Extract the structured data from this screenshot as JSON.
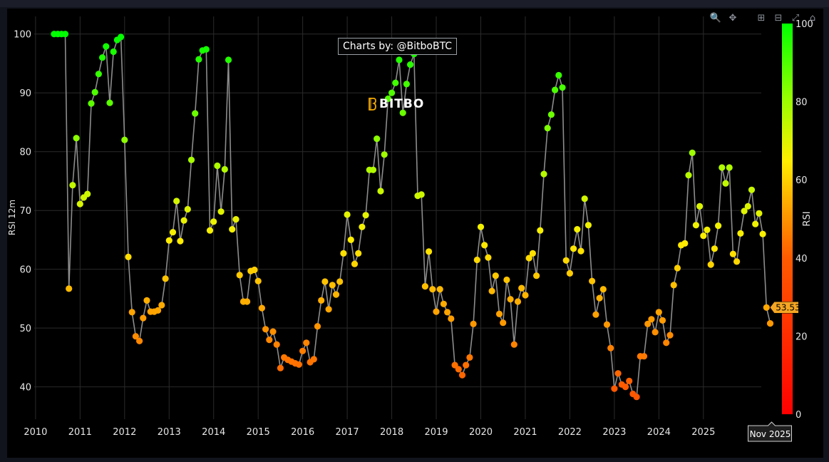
{
  "toolbar": {
    "zoom_icon": "magnifier-icon",
    "pan_icon": "pan-icon",
    "zoom_in_icon": "plus-icon",
    "zoom_out_icon": "minus-icon",
    "autoscale_icon": "autoscale-icon",
    "reset_icon": "home-icon"
  },
  "watermark": "Charts by: @BitboBTC",
  "logo_text": "BITBO",
  "hover": {
    "value_label": "53.53",
    "date_label": "Nov 2025"
  },
  "colors": {
    "line": "#888888",
    "grid": "#2a2a2a",
    "axis_text": "#e6e6e6",
    "tooltip_bg": "#f5a623"
  },
  "chart_data": {
    "type": "scatter",
    "title": "",
    "xlabel": "",
    "ylabel": "RSI 12m",
    "xlim": [
      2009.97,
      2026.3
    ],
    "ylim": [
      34.5,
      103
    ],
    "x_ticks": [
      "2010",
      "2011",
      "2012",
      "2013",
      "2014",
      "2015",
      "2016",
      "2017",
      "2018",
      "2019",
      "2020",
      "2021",
      "2022",
      "2023",
      "2024",
      "2025"
    ],
    "y_ticks": [
      40,
      50,
      60,
      70,
      80,
      90,
      100
    ],
    "colorbar": {
      "title": "RSI",
      "range": [
        0,
        100
      ],
      "ticks": [
        0,
        20,
        40,
        60,
        80,
        100
      ]
    },
    "series": [
      {
        "name": "RSI 12m",
        "start": "2010-06",
        "values": [
          100,
          100,
          100,
          100,
          56.7,
          74.3,
          82.3,
          71.1,
          72.2,
          72.8,
          88.2,
          90.1,
          93.2,
          96,
          97.9,
          88.3,
          97,
          99,
          99.5,
          82,
          62.1,
          52.7,
          48.6,
          47.8,
          51.7,
          54.7,
          52.8,
          52.8,
          53,
          53.9,
          58.4,
          64.9,
          66.3,
          71.6,
          64.8,
          68.3,
          70.2,
          78.6,
          86.5,
          95.7,
          97.2,
          97.4,
          66.6,
          68.1,
          77.6,
          69.8,
          77,
          95.6,
          66.8,
          68.5,
          59,
          54.5,
          54.5,
          59.7,
          59.9,
          58,
          53.4,
          49.8,
          48,
          49.4,
          47.2,
          43.2,
          45,
          44.6,
          44.3,
          44,
          43.8,
          46.1,
          47.5,
          44.2,
          44.7,
          50.3,
          54.7,
          57.9,
          53.2,
          57.3,
          55.7,
          57.9,
          62.7,
          69.3,
          65,
          60.9,
          62.7,
          67.2,
          69.2,
          76.9,
          76.9,
          82.2,
          73.3,
          79.5,
          89,
          90,
          91.7,
          95.6,
          86.6,
          91.5,
          94.8,
          96.6,
          72.5,
          72.7,
          57.1,
          63,
          56.6,
          52.8,
          56.6,
          54.1,
          52.7,
          51.6,
          43.7,
          43,
          42,
          43.7,
          45,
          50.7,
          61.6,
          67.2,
          64.1,
          62,
          56.3,
          58.9,
          52.4,
          50.9,
          58.2,
          54.9,
          47.2,
          54.5,
          56.8,
          55.6,
          61.9,
          62.7,
          58.9,
          66.6,
          76.2,
          84,
          86.3,
          90.5,
          93,
          90.9,
          61.5,
          59.3,
          63.5,
          66.8,
          63.1,
          72,
          67.5,
          58,
          52.3,
          55.1,
          56.6,
          50.6,
          46.6,
          39.7,
          42.3,
          40.4,
          40,
          41,
          38.8,
          38.3,
          45.2,
          45.2,
          50.7,
          51.5,
          49.3,
          52.7,
          51.3,
          47.5,
          48.8,
          57.3,
          60.2,
          64.1,
          64.4,
          76,
          79.8,
          67.5,
          70.7,
          65.7,
          66.7,
          60.8,
          63.5,
          67.4,
          77.3,
          74.6,
          77.3,
          62.6,
          61.3,
          66.1,
          69.9,
          70.7,
          73.5,
          67.7,
          69.5,
          66,
          53.5,
          50.8
        ]
      }
    ]
  }
}
